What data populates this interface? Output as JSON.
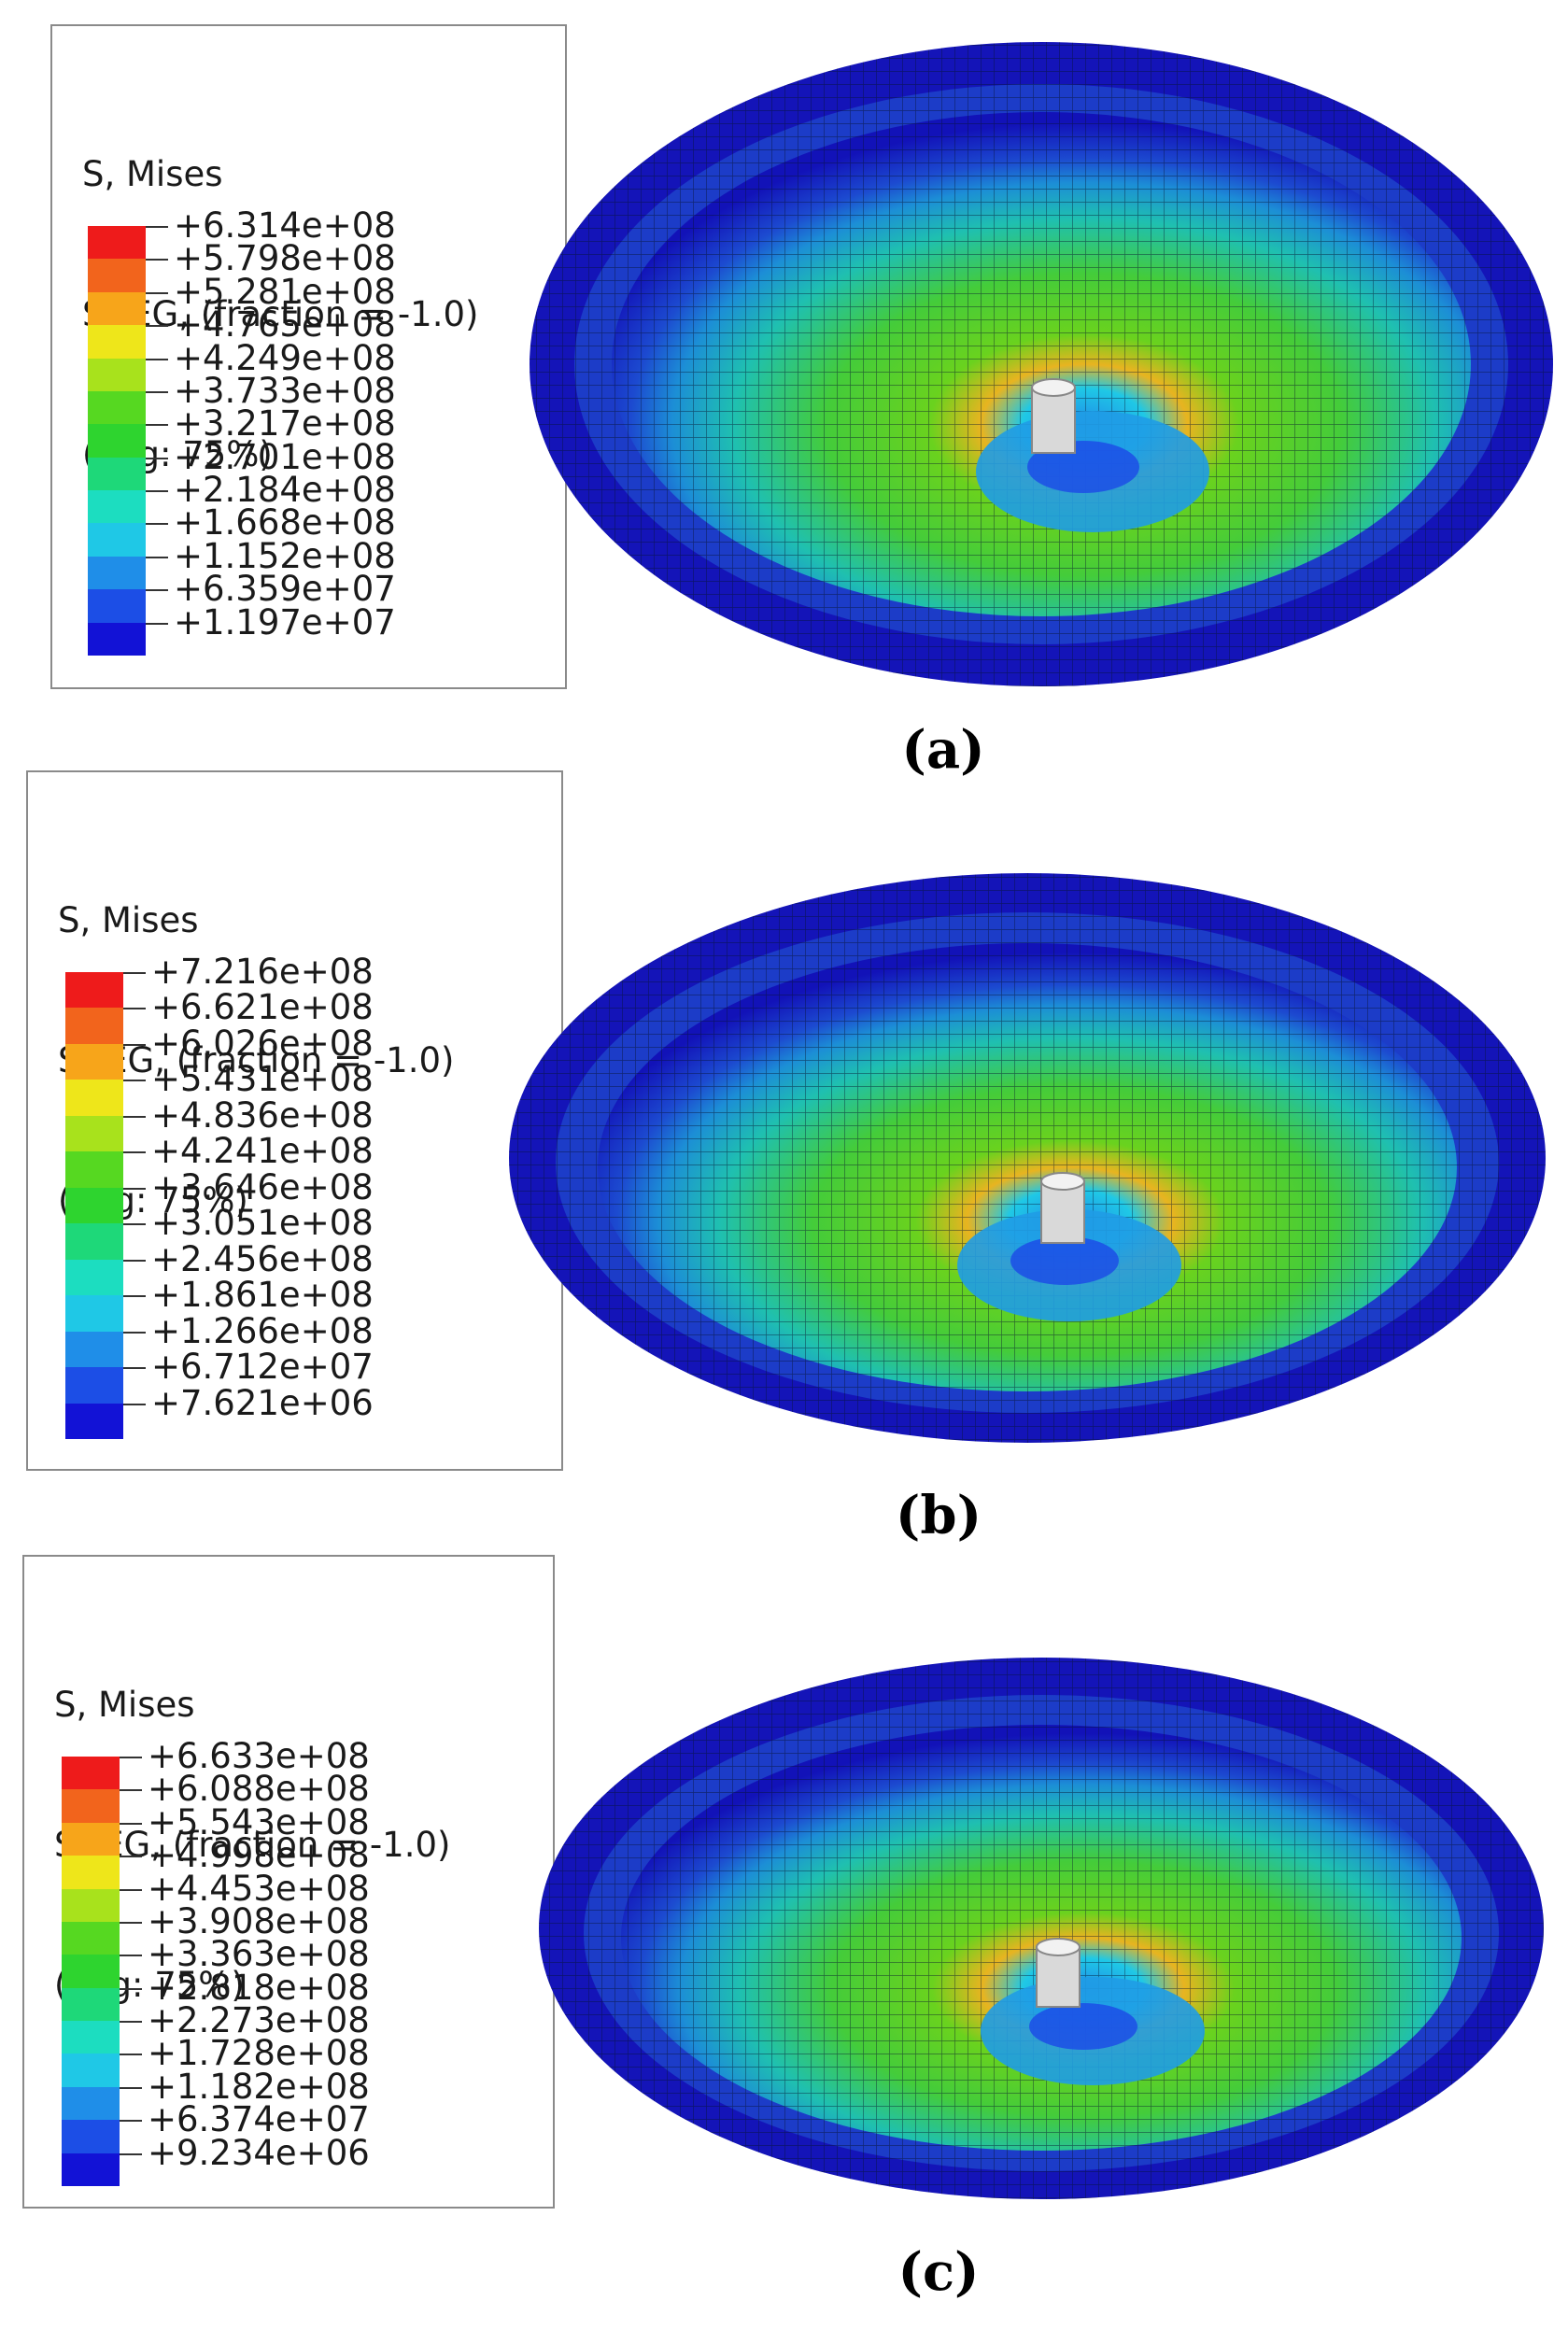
{
  "legend_lines": [
    "S, Mises",
    "SNEG, (fraction = -1.0)",
    "(Avg: 75%)"
  ],
  "band_colors": [
    "#ee1b1b",
    "#f2641c",
    "#f7a51a",
    "#eee61a",
    "#a8e21c",
    "#56d821",
    "#2ed42f",
    "#1ed879",
    "#1cddc0",
    "#1fc8e6",
    "#1f8ee8",
    "#1c4ee6",
    "#1212d6"
  ],
  "panels": [
    {
      "caption": "(a)",
      "values": [
        "+6.314e+08",
        "+5.798e+08",
        "+5.281e+08",
        "+4.765e+08",
        "+4.249e+08",
        "+3.733e+08",
        "+3.217e+08",
        "+2.701e+08",
        "+2.184e+08",
        "+1.668e+08",
        "+1.152e+08",
        "+6.359e+07",
        "+1.197e+07"
      ]
    },
    {
      "caption": "(b)",
      "values": [
        "+7.216e+08",
        "+6.621e+08",
        "+6.026e+08",
        "+5.431e+08",
        "+4.836e+08",
        "+4.241e+08",
        "+3.646e+08",
        "+3.051e+08",
        "+2.456e+08",
        "+1.861e+08",
        "+1.266e+08",
        "+6.712e+07",
        "+7.621e+06"
      ]
    },
    {
      "caption": "(c)",
      "values": [
        "+6.633e+08",
        "+6.088e+08",
        "+5.543e+08",
        "+4.998e+08",
        "+4.453e+08",
        "+3.908e+08",
        "+3.363e+08",
        "+2.818e+08",
        "+2.273e+08",
        "+1.728e+08",
        "+1.182e+08",
        "+6.374e+07",
        "+9.234e+06"
      ]
    }
  ]
}
